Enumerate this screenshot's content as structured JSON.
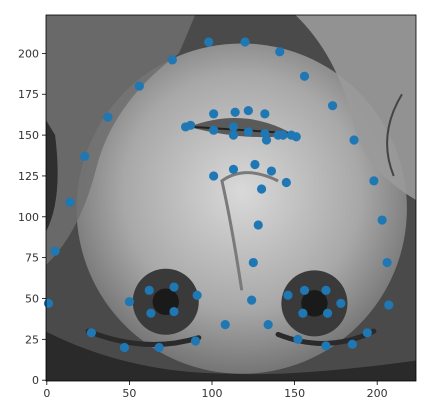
{
  "chart_data": {
    "type": "scatter",
    "background": "grayscale photo of a face with hand on cheek",
    "x_ticks": [
      0,
      50,
      100,
      150,
      200
    ],
    "y_ticks": [
      0,
      25,
      50,
      75,
      100,
      125,
      150,
      175,
      200
    ],
    "xlim": [
      -0.5,
      223.5
    ],
    "ylim": [
      223.5,
      -0.5
    ],
    "point_color": "#1f77b4",
    "points": [
      [
        47,
        20
      ],
      [
        68,
        20
      ],
      [
        90,
        24
      ],
      [
        27,
        29
      ],
      [
        108,
        34
      ],
      [
        1,
        47
      ],
      [
        50,
        48
      ],
      [
        63,
        41
      ],
      [
        77,
        42
      ],
      [
        62,
        55
      ],
      [
        77,
        57
      ],
      [
        91,
        52
      ],
      [
        124,
        49
      ],
      [
        134,
        34
      ],
      [
        152,
        25
      ],
      [
        169,
        21
      ],
      [
        185,
        22
      ],
      [
        194,
        29
      ],
      [
        155,
        41
      ],
      [
        170,
        41
      ],
      [
        178,
        47
      ],
      [
        207,
        46
      ],
      [
        146,
        52
      ],
      [
        156,
        55
      ],
      [
        169,
        55
      ],
      [
        125,
        72
      ],
      [
        206,
        72
      ],
      [
        5,
        79
      ],
      [
        128,
        95
      ],
      [
        203,
        98
      ],
      [
        14,
        109
      ],
      [
        130,
        117
      ],
      [
        145,
        121
      ],
      [
        198,
        122
      ],
      [
        101,
        125
      ],
      [
        113,
        129
      ],
      [
        126,
        132
      ],
      [
        136,
        128
      ],
      [
        23,
        137
      ],
      [
        87,
        156
      ],
      [
        84,
        155
      ],
      [
        101,
        153
      ],
      [
        113,
        150
      ],
      [
        113,
        155
      ],
      [
        122,
        152
      ],
      [
        132,
        151
      ],
      [
        133,
        147
      ],
      [
        140,
        150
      ],
      [
        143,
        150
      ],
      [
        148,
        150
      ],
      [
        151,
        149
      ],
      [
        101,
        163
      ],
      [
        114,
        164
      ],
      [
        122,
        165
      ],
      [
        132,
        163
      ],
      [
        186,
        147
      ],
      [
        37,
        161
      ],
      [
        173,
        168
      ],
      [
        56,
        180
      ],
      [
        156,
        186
      ],
      [
        76,
        196
      ],
      [
        141,
        201
      ],
      [
        98,
        207
      ],
      [
        120,
        207
      ]
    ]
  }
}
